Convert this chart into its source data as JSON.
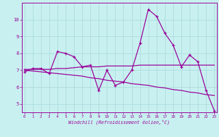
{
  "xlabel": "Windchill (Refroidissement éolien,°C)",
  "background_color": "#c8f0f0",
  "grid_color": "#b0dede",
  "line_color": "#990099",
  "x_values": [
    0,
    1,
    2,
    3,
    4,
    5,
    6,
    7,
    8,
    9,
    10,
    11,
    12,
    13,
    14,
    15,
    16,
    17,
    18,
    19,
    20,
    21,
    22,
    23
  ],
  "line1": [
    6.9,
    7.1,
    7.1,
    6.8,
    8.1,
    8.0,
    7.8,
    7.2,
    7.3,
    5.8,
    7.0,
    6.1,
    6.3,
    7.0,
    8.6,
    10.6,
    10.2,
    9.2,
    8.5,
    7.2,
    7.9,
    7.5,
    5.8,
    4.6
  ],
  "line_smooth1": [
    7.05,
    7.05,
    7.05,
    7.05,
    7.1,
    7.1,
    7.15,
    7.2,
    7.2,
    7.2,
    7.25,
    7.25,
    7.25,
    7.25,
    7.3,
    7.3,
    7.3,
    7.3,
    7.3,
    7.3,
    7.3,
    7.3,
    7.3,
    7.3
  ],
  "line_smooth2": [
    7.0,
    6.95,
    6.9,
    6.85,
    6.8,
    6.75,
    6.7,
    6.65,
    6.55,
    6.5,
    6.4,
    6.35,
    6.3,
    6.2,
    6.15,
    6.1,
    6.0,
    5.95,
    5.85,
    5.8,
    5.7,
    5.65,
    5.55,
    5.5
  ],
  "ylim": [
    4.5,
    11.0
  ],
  "yticks": [
    5,
    6,
    7,
    8,
    9,
    10
  ],
  "xticks": [
    0,
    1,
    2,
    3,
    4,
    5,
    6,
    7,
    8,
    9,
    10,
    11,
    12,
    13,
    14,
    15,
    16,
    17,
    18,
    19,
    20,
    21,
    22,
    23
  ]
}
